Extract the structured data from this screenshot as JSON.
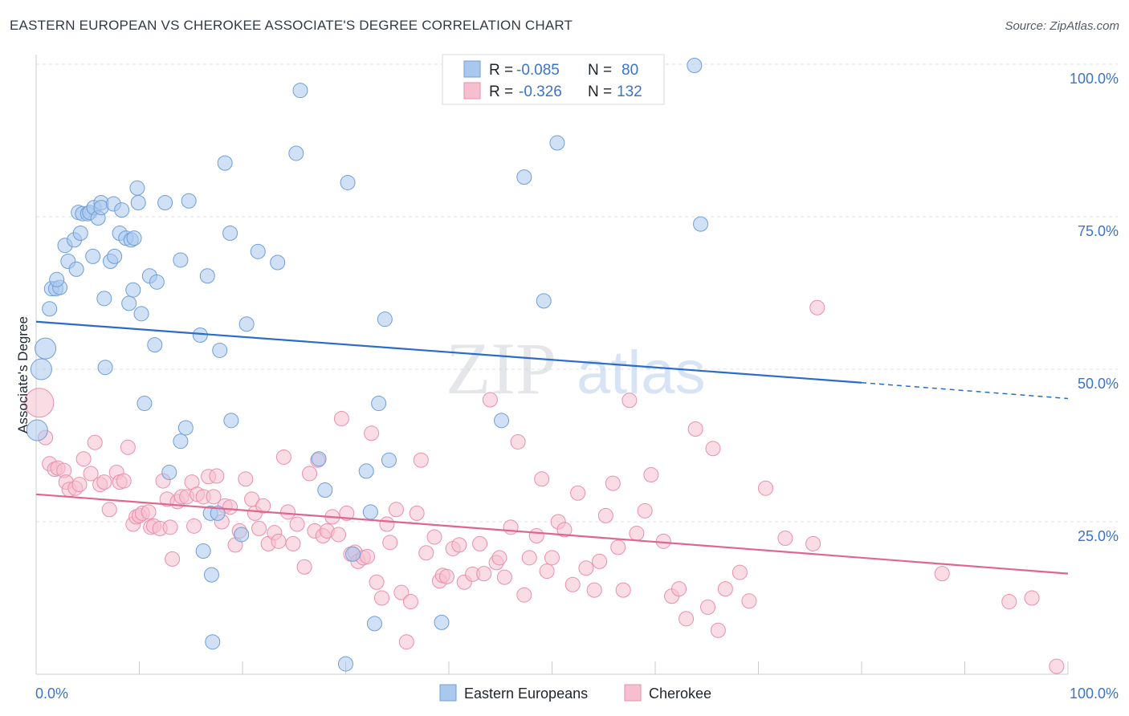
{
  "title": "EASTERN EUROPEAN VS CHEROKEE ASSOCIATE'S DEGREE CORRELATION CHART",
  "source": "Source: ZipAtlas.com",
  "watermark": {
    "zip": "ZIP",
    "atlas": "atlas"
  },
  "colors": {
    "blue_fill": "#aac8ee",
    "blue_stroke": "#6f9ed8",
    "blue_line": "#2a6cc9",
    "pink_fill": "#f6bfd0",
    "pink_stroke": "#ea8fad",
    "pink_line": "#e0658f",
    "grid": "#dde1e6",
    "tick": "#3b74c8"
  },
  "legend": {
    "rows": [
      {
        "r_label": "R =",
        "r_value": "-0.085",
        "n_label": "N =",
        "n_value": "80"
      },
      {
        "r_label": "R =",
        "r_value": "-0.326",
        "n_label": "N =",
        "n_value": "132"
      }
    ]
  },
  "bottom_legend": [
    "Eastern Europeans",
    "Cherokee"
  ],
  "chart_data": {
    "type": "scatter",
    "title": "EASTERN EUROPEAN VS CHEROKEE ASSOCIATE'S DEGREE CORRELATION CHART",
    "xlabel": "",
    "ylabel": "Associate's Degree",
    "xlim": [
      0,
      100
    ],
    "ylim": [
      0,
      100
    ],
    "x_tick_labels": [
      "0.0%",
      "100.0%"
    ],
    "y_tick_labels": [
      "25.0%",
      "50.0%",
      "75.0%",
      "100.0%"
    ],
    "y_ticks": [
      25,
      50,
      75,
      100
    ],
    "grid": true,
    "series": [
      {
        "name": "Eastern Europeans",
        "R": -0.085,
        "N": 80,
        "trend": {
          "x0": 0,
          "y0": 57.8,
          "x1": 80,
          "y1": 47.8,
          "dashed_to_x": 100,
          "dashed_to_y": 45.2
        },
        "points": [
          [
            0.1,
            40
          ],
          [
            0.5,
            50
          ],
          [
            0.9,
            53.4
          ],
          [
            1.3,
            59.9
          ],
          [
            1.5,
            63.2
          ],
          [
            1.9,
            63.2
          ],
          [
            2.3,
            63.4
          ],
          [
            2.0,
            64.7
          ],
          [
            2.8,
            70.3
          ],
          [
            3.1,
            67.7
          ],
          [
            3.7,
            71.2
          ],
          [
            3.9,
            66.4
          ],
          [
            4.1,
            75.7
          ],
          [
            4.3,
            72.3
          ],
          [
            4.5,
            75.5
          ],
          [
            5.0,
            75.5
          ],
          [
            5.2,
            75.7
          ],
          [
            5.5,
            68.5
          ],
          [
            5.6,
            76.5
          ],
          [
            6.0,
            74.8
          ],
          [
            6.3,
            77.3
          ],
          [
            6.3,
            76.5
          ],
          [
            6.6,
            61.6
          ],
          [
            6.7,
            50.3
          ],
          [
            7.5,
            77.1
          ],
          [
            7.2,
            67.7
          ],
          [
            7.6,
            68.5
          ],
          [
            8.1,
            72.3
          ],
          [
            8.3,
            76.1
          ],
          [
            8.7,
            71.5
          ],
          [
            9.0,
            60.8
          ],
          [
            9.2,
            71.2
          ],
          [
            9.4,
            63.0
          ],
          [
            9.5,
            71.5
          ],
          [
            9.8,
            79.7
          ],
          [
            9.9,
            77.3
          ],
          [
            10.2,
            59.1
          ],
          [
            10.5,
            44.4
          ],
          [
            11.0,
            65.3
          ],
          [
            11.5,
            54.0
          ],
          [
            11.7,
            64.3
          ],
          [
            12.5,
            77.3
          ],
          [
            12.9,
            33.1
          ],
          [
            14.0,
            67.9
          ],
          [
            14.0,
            38.2
          ],
          [
            14.5,
            40.4
          ],
          [
            14.8,
            77.6
          ],
          [
            15.9,
            55.6
          ],
          [
            16.2,
            20.2
          ],
          [
            16.6,
            65.3
          ],
          [
            16.9,
            26.4
          ],
          [
            17.0,
            16.3
          ],
          [
            17.1,
            5.3
          ],
          [
            17.6,
            26.4
          ],
          [
            17.8,
            53.1
          ],
          [
            18.3,
            83.8
          ],
          [
            18.8,
            72.3
          ],
          [
            18.9,
            41.6
          ],
          [
            19.9,
            22.9
          ],
          [
            20.4,
            57.4
          ],
          [
            21.5,
            69.3
          ],
          [
            23.4,
            67.5
          ],
          [
            25.2,
            85.4
          ],
          [
            25.6,
            95.7
          ],
          [
            27.4,
            35.3
          ],
          [
            28.0,
            30.2
          ],
          [
            30.0,
            1.7
          ],
          [
            30.2,
            80.6
          ],
          [
            30.7,
            19.7
          ],
          [
            32.0,
            33.3
          ],
          [
            32.4,
            26.6
          ],
          [
            32.8,
            8.3
          ],
          [
            33.2,
            44.4
          ],
          [
            33.8,
            58.2
          ],
          [
            34.2,
            35.1
          ],
          [
            39.3,
            8.5
          ],
          [
            45.1,
            41.6
          ],
          [
            47.3,
            81.5
          ],
          [
            49.2,
            61.2
          ],
          [
            50.5,
            87.1
          ],
          [
            63.8,
            99.8
          ],
          [
            64.4,
            73.8
          ]
        ]
      },
      {
        "name": "Cherokee",
        "R": -0.326,
        "N": 132,
        "trend": {
          "x0": 0,
          "y0": 29.5,
          "x1": 100,
          "y1": 16.5
        },
        "points": [
          [
            0.3,
            44.5
          ],
          [
            0.9,
            38.8
          ],
          [
            1.3,
            34.5
          ],
          [
            1.8,
            33.6
          ],
          [
            2.1,
            33.8
          ],
          [
            2.7,
            33.4
          ],
          [
            2.9,
            31.5
          ],
          [
            3.2,
            30.3
          ],
          [
            3.8,
            30.5
          ],
          [
            4.2,
            31.1
          ],
          [
            4.6,
            35.3
          ],
          [
            5.3,
            32.9
          ],
          [
            5.7,
            38.0
          ],
          [
            6.2,
            31.1
          ],
          [
            6.6,
            31.5
          ],
          [
            7.1,
            27.0
          ],
          [
            7.8,
            33.1
          ],
          [
            8.1,
            31.5
          ],
          [
            8.5,
            31.7
          ],
          [
            8.9,
            37.2
          ],
          [
            9.4,
            24.6
          ],
          [
            9.7,
            25.8
          ],
          [
            10.0,
            26.0
          ],
          [
            10.3,
            26.4
          ],
          [
            10.9,
            26.6
          ],
          [
            11.1,
            24.1
          ],
          [
            11.4,
            24.3
          ],
          [
            12.0,
            23.9
          ],
          [
            12.3,
            31.7
          ],
          [
            12.7,
            28.7
          ],
          [
            13.0,
            24.1
          ],
          [
            13.2,
            18.9
          ],
          [
            13.7,
            28.3
          ],
          [
            14.1,
            29.1
          ],
          [
            14.6,
            29.1
          ],
          [
            15.1,
            31.5
          ],
          [
            15.3,
            24.3
          ],
          [
            15.6,
            29.5
          ],
          [
            16.2,
            29.1
          ],
          [
            16.7,
            32.4
          ],
          [
            17.2,
            29.1
          ],
          [
            17.5,
            32.5
          ],
          [
            18.0,
            25.0
          ],
          [
            18.3,
            27.6
          ],
          [
            18.8,
            27.4
          ],
          [
            19.3,
            21.2
          ],
          [
            19.7,
            23.5
          ],
          [
            20.3,
            32.0
          ],
          [
            20.9,
            28.7
          ],
          [
            21.2,
            26.4
          ],
          [
            21.6,
            23.9
          ],
          [
            22.0,
            27.6
          ],
          [
            22.5,
            21.4
          ],
          [
            23.1,
            23.2
          ],
          [
            23.5,
            21.8
          ],
          [
            24.0,
            35.6
          ],
          [
            24.4,
            26.6
          ],
          [
            24.9,
            21.4
          ],
          [
            25.3,
            24.6
          ],
          [
            26.0,
            17.6
          ],
          [
            26.5,
            32.9
          ],
          [
            27.0,
            23.5
          ],
          [
            27.3,
            35.1
          ],
          [
            27.8,
            22.7
          ],
          [
            28.2,
            23.5
          ],
          [
            28.7,
            25.8
          ],
          [
            29.3,
            22.9
          ],
          [
            29.6,
            41.9
          ],
          [
            30.1,
            26.4
          ],
          [
            30.5,
            19.7
          ],
          [
            30.9,
            20.0
          ],
          [
            31.2,
            18.5
          ],
          [
            31.7,
            19.1
          ],
          [
            32.1,
            19.3
          ],
          [
            32.5,
            39.5
          ],
          [
            33.0,
            15.1
          ],
          [
            33.5,
            12.5
          ],
          [
            34.0,
            24.6
          ],
          [
            34.3,
            21.6
          ],
          [
            34.9,
            27.0
          ],
          [
            35.4,
            13.4
          ],
          [
            35.9,
            5.3
          ],
          [
            36.3,
            11.9
          ],
          [
            36.9,
            26.4
          ],
          [
            37.3,
            35.1
          ],
          [
            37.8,
            19.9
          ],
          [
            38.6,
            22.5
          ],
          [
            39.1,
            15.3
          ],
          [
            39.4,
            16.2
          ],
          [
            39.8,
            16.0
          ],
          [
            40.4,
            20.6
          ],
          [
            41.0,
            21.2
          ],
          [
            41.5,
            15.1
          ],
          [
            42.3,
            16.4
          ],
          [
            43.0,
            21.4
          ],
          [
            43.4,
            16.5
          ],
          [
            44.0,
            45.0
          ],
          [
            44.6,
            18.3
          ],
          [
            44.9,
            19.1
          ],
          [
            45.4,
            15.9
          ],
          [
            46.0,
            24.1
          ],
          [
            46.7,
            38.1
          ],
          [
            47.3,
            13.0
          ],
          [
            47.8,
            19.1
          ],
          [
            48.5,
            22.7
          ],
          [
            49.0,
            32.0
          ],
          [
            49.5,
            16.9
          ],
          [
            50.0,
            19.1
          ],
          [
            50.6,
            25.0
          ],
          [
            51.2,
            23.7
          ],
          [
            52.0,
            14.7
          ],
          [
            52.5,
            29.7
          ],
          [
            53.3,
            17.4
          ],
          [
            54.1,
            13.8
          ],
          [
            54.6,
            18.5
          ],
          [
            55.2,
            26.0
          ],
          [
            55.9,
            31.3
          ],
          [
            56.4,
            20.8
          ],
          [
            56.9,
            13.8
          ],
          [
            57.5,
            44.9
          ],
          [
            58.2,
            23.1
          ],
          [
            59.0,
            26.8
          ],
          [
            59.6,
            32.7
          ],
          [
            60.8,
            21.8
          ],
          [
            61.6,
            12.8
          ],
          [
            62.3,
            14.0
          ],
          [
            63.0,
            9.1
          ],
          [
            63.9,
            40.2
          ],
          [
            65.1,
            11.0
          ],
          [
            65.6,
            37.0
          ],
          [
            66.1,
            7.2
          ],
          [
            66.8,
            14.0
          ],
          [
            68.2,
            16.7
          ],
          [
            69.1,
            12.0
          ],
          [
            70.7,
            30.5
          ],
          [
            72.6,
            22.3
          ],
          [
            75.3,
            21.4
          ],
          [
            75.7,
            60.1
          ],
          [
            87.8,
            16.5
          ],
          [
            94.3,
            11.9
          ],
          [
            96.5,
            12.5
          ],
          [
            98.9,
            1.3
          ]
        ]
      }
    ]
  }
}
